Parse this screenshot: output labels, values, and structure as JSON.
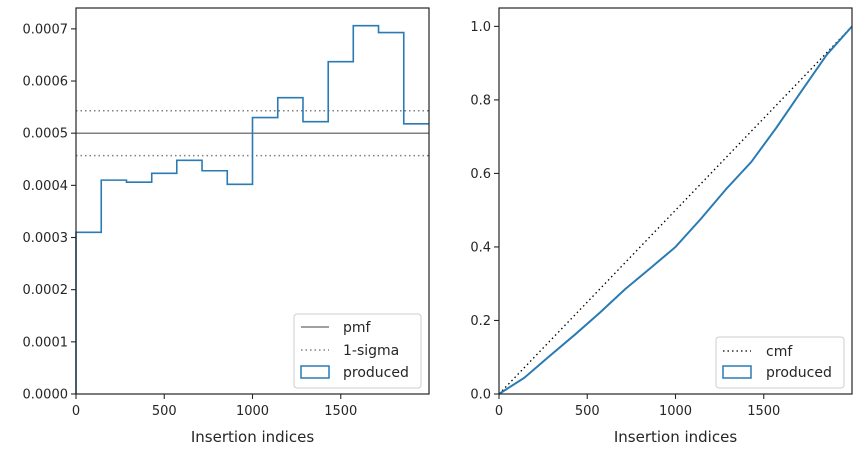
{
  "chart_data": [
    {
      "type": "histogram-step",
      "xlabel": "Insertion indices",
      "ylabel": "",
      "xlim": [
        0,
        2000
      ],
      "ylim": [
        0,
        0.00074
      ],
      "xticks": [
        0,
        500,
        1000,
        1500
      ],
      "xtick_labels": [
        "0",
        "500",
        "1000",
        "1500"
      ],
      "yticks": [
        0,
        0.0001,
        0.0002,
        0.0003,
        0.0004,
        0.0005,
        0.0006,
        0.0007
      ],
      "ytick_labels": [
        "0.0000",
        "0.0001",
        "0.0002",
        "0.0003",
        "0.0004",
        "0.0005",
        "0.0006",
        "0.0007"
      ],
      "bin_edges": [
        0,
        143,
        286,
        429,
        571,
        714,
        857,
        1000,
        1143,
        1286,
        1429,
        1571,
        1714,
        1857,
        2000
      ],
      "series": [
        {
          "name": "produced",
          "values": [
            0.00031,
            0.00041,
            0.000406,
            0.000423,
            0.000448,
            0.000428,
            0.000402,
            0.00053,
            0.000568,
            0.000522,
            0.000637,
            0.000706,
            0.000693,
            0.000518
          ]
        }
      ],
      "reference_lines": [
        {
          "name": "pmf",
          "value": 0.0005,
          "style": "solid"
        },
        {
          "name": "1-sigma",
          "values": [
            0.000543,
            0.000457
          ],
          "style": "dotted"
        }
      ],
      "legend": {
        "position": "lower-right",
        "entries": [
          "pmf",
          "1-sigma",
          "produced"
        ]
      },
      "grid": false
    },
    {
      "type": "line",
      "xlabel": "Insertion indices",
      "ylabel": "",
      "xlim": [
        0,
        2000
      ],
      "ylim": [
        0,
        1.05
      ],
      "xticks": [
        0,
        500,
        1000,
        1500
      ],
      "xtick_labels": [
        "0",
        "500",
        "1000",
        "1500"
      ],
      "yticks": [
        0,
        0.2,
        0.4,
        0.6,
        0.8,
        1.0
      ],
      "ytick_labels": [
        "0.0",
        "0.2",
        "0.4",
        "0.6",
        "0.8",
        "1.0"
      ],
      "series": [
        {
          "name": "cmf",
          "style": "dotted",
          "x": [
            0,
            2000
          ],
          "y": [
            0,
            1.0
          ]
        },
        {
          "name": "produced",
          "style": "solid",
          "x": [
            0,
            143,
            286,
            429,
            571,
            714,
            857,
            1000,
            1143,
            1286,
            1429,
            1571,
            1714,
            1857,
            2000
          ],
          "y": [
            0,
            0.044,
            0.103,
            0.161,
            0.221,
            0.285,
            0.342,
            0.4,
            0.476,
            0.557,
            0.631,
            0.724,
            0.824,
            0.923,
            1.0
          ]
        }
      ],
      "legend": {
        "position": "lower-right",
        "entries": [
          "cmf",
          "produced"
        ]
      },
      "grid": false
    }
  ],
  "colors": {
    "produced": "#2a7bb4",
    "reference": "#808080",
    "cmf": "#000000",
    "axes": "#262626"
  }
}
